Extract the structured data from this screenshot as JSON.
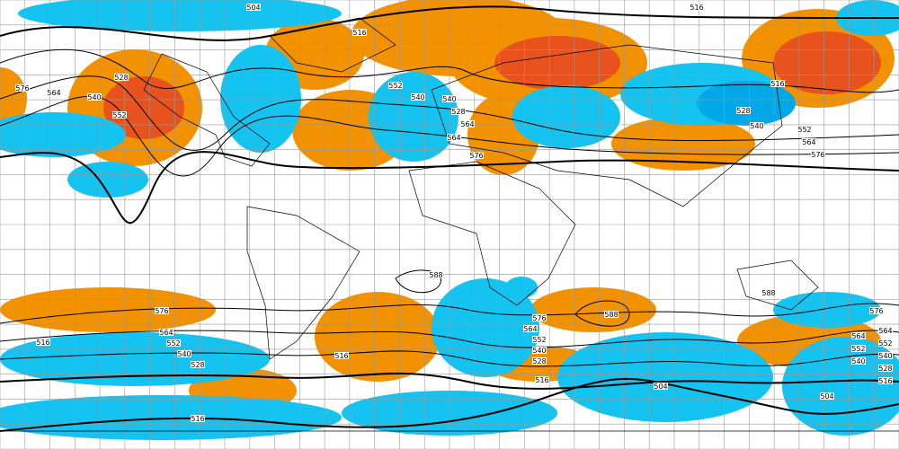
{
  "map": {
    "colors": {
      "positive_anomaly": "#f39200",
      "strong_positive_anomaly": "#e8521c",
      "negative_anomaly": "#14c3f0",
      "strong_negative_anomaly": "#00a8e8",
      "weak_negative_anomaly": "#8fe2fb",
      "grid": "#999999",
      "contour": "#000000"
    },
    "contour_labels": [
      "504",
      "516",
      "528",
      "540",
      "552",
      "564",
      "576",
      "516",
      "540",
      "552",
      "564",
      "528",
      "540",
      "564",
      "576",
      "516",
      "528",
      "540",
      "552",
      "564",
      "576",
      "516",
      "588",
      "576",
      "564",
      "552",
      "540",
      "528",
      "576",
      "564",
      "552",
      "540",
      "528",
      "516",
      "588",
      "576",
      "564",
      "552",
      "540",
      "528",
      "516",
      "504",
      "588",
      "564",
      "552",
      "540",
      "516",
      "504",
      "516"
    ]
  }
}
